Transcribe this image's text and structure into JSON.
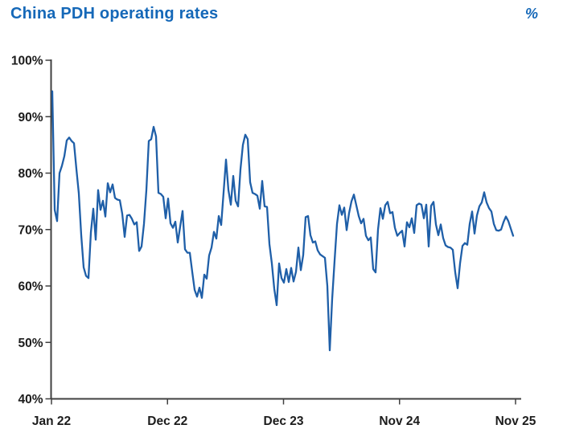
{
  "header": {
    "title": "China PDH operating rates",
    "unit_label": "%"
  },
  "colors": {
    "title_blue": "#1568b8",
    "line_blue": "#1f5fa8",
    "axis": "#404040",
    "tick_label": "#1c1c1c"
  },
  "chart_data": {
    "type": "line",
    "title": "China PDH operating rates",
    "unit": "%",
    "grid": false,
    "legend": "none",
    "ylim": [
      40,
      100
    ],
    "y_tick_labels": [
      "100%",
      "90%",
      "80%",
      "70%",
      "60%",
      "50%",
      "40%"
    ],
    "y_tick_values": [
      100,
      90,
      80,
      70,
      60,
      50,
      40
    ],
    "x_tick_labels": [
      "Jan 22",
      "Dec 22",
      "Dec 23",
      "Nov 24",
      "Nov 25"
    ],
    "series": [
      {
        "name": "China PDH operating rate",
        "color": "#1f5fa8",
        "values": [
          94.5,
          73.5,
          71.5,
          80,
          81.3,
          83,
          85.8,
          86.3,
          85.7,
          85.3,
          80.7,
          76.4,
          69,
          63.3,
          61.8,
          61.4,
          69.5,
          73.7,
          68.2,
          77,
          73.5,
          75.1,
          72.3,
          78.2,
          76.6,
          78,
          75.6,
          75.3,
          75.2,
          72.8,
          68.7,
          72.5,
          72.6,
          71.9,
          70.9,
          71.3,
          66.2,
          67,
          71,
          77,
          85.7,
          86,
          88.2,
          86.5,
          76.5,
          76.3,
          75.8,
          72,
          75.5,
          71.1,
          70.3,
          71.4,
          67.7,
          70.5,
          73.3,
          66.5,
          65.9,
          65.9,
          62.5,
          59.3,
          58.1,
          59.7,
          57.9,
          62,
          61.3,
          65.4,
          66.8,
          69.6,
          68.4,
          72.4,
          70.8,
          76.6,
          82.4,
          77,
          74.4,
          79.5,
          75.1,
          74.1,
          80.7,
          85,
          86.8,
          86,
          78.4,
          76.5,
          76.3,
          76,
          73.7,
          78.6,
          74.1,
          74,
          67.4,
          64,
          59.5,
          56.6,
          64,
          61.4,
          60.6,
          63,
          60.7,
          63.2,
          60.8,
          62.5,
          66.8,
          62.8,
          65.5,
          72.2,
          72.4,
          69,
          67.7,
          67.9,
          66.3,
          65.6,
          65.3,
          65,
          60,
          48.6,
          57.7,
          64.5,
          71,
          74.3,
          72.6,
          73.9,
          69.9,
          72.9,
          75,
          76.2,
          74.3,
          72.4,
          71.1,
          71.9,
          68.9,
          68.1,
          68.6,
          63,
          62.4,
          70,
          73.8,
          71.9,
          74.3,
          74.9,
          72.9,
          73.1,
          70.3,
          68.9,
          69.4,
          69.8,
          67,
          71.3,
          70.4,
          72,
          69.4,
          74.3,
          74.6,
          74.4,
          72,
          74.4,
          67,
          74.2,
          74.9,
          70.9,
          69,
          70.9,
          68.5,
          67.2,
          66.9,
          66.8,
          66.4,
          62.4,
          59.6,
          64,
          67.1,
          67.6,
          67.3,
          71,
          73.2,
          69.3,
          72.5,
          74.1,
          74.8,
          76.6,
          74.8,
          73.8,
          73.2,
          71,
          69.9,
          69.8,
          70,
          71.3,
          72.3,
          71.5,
          70.2,
          68.9
        ]
      }
    ]
  }
}
